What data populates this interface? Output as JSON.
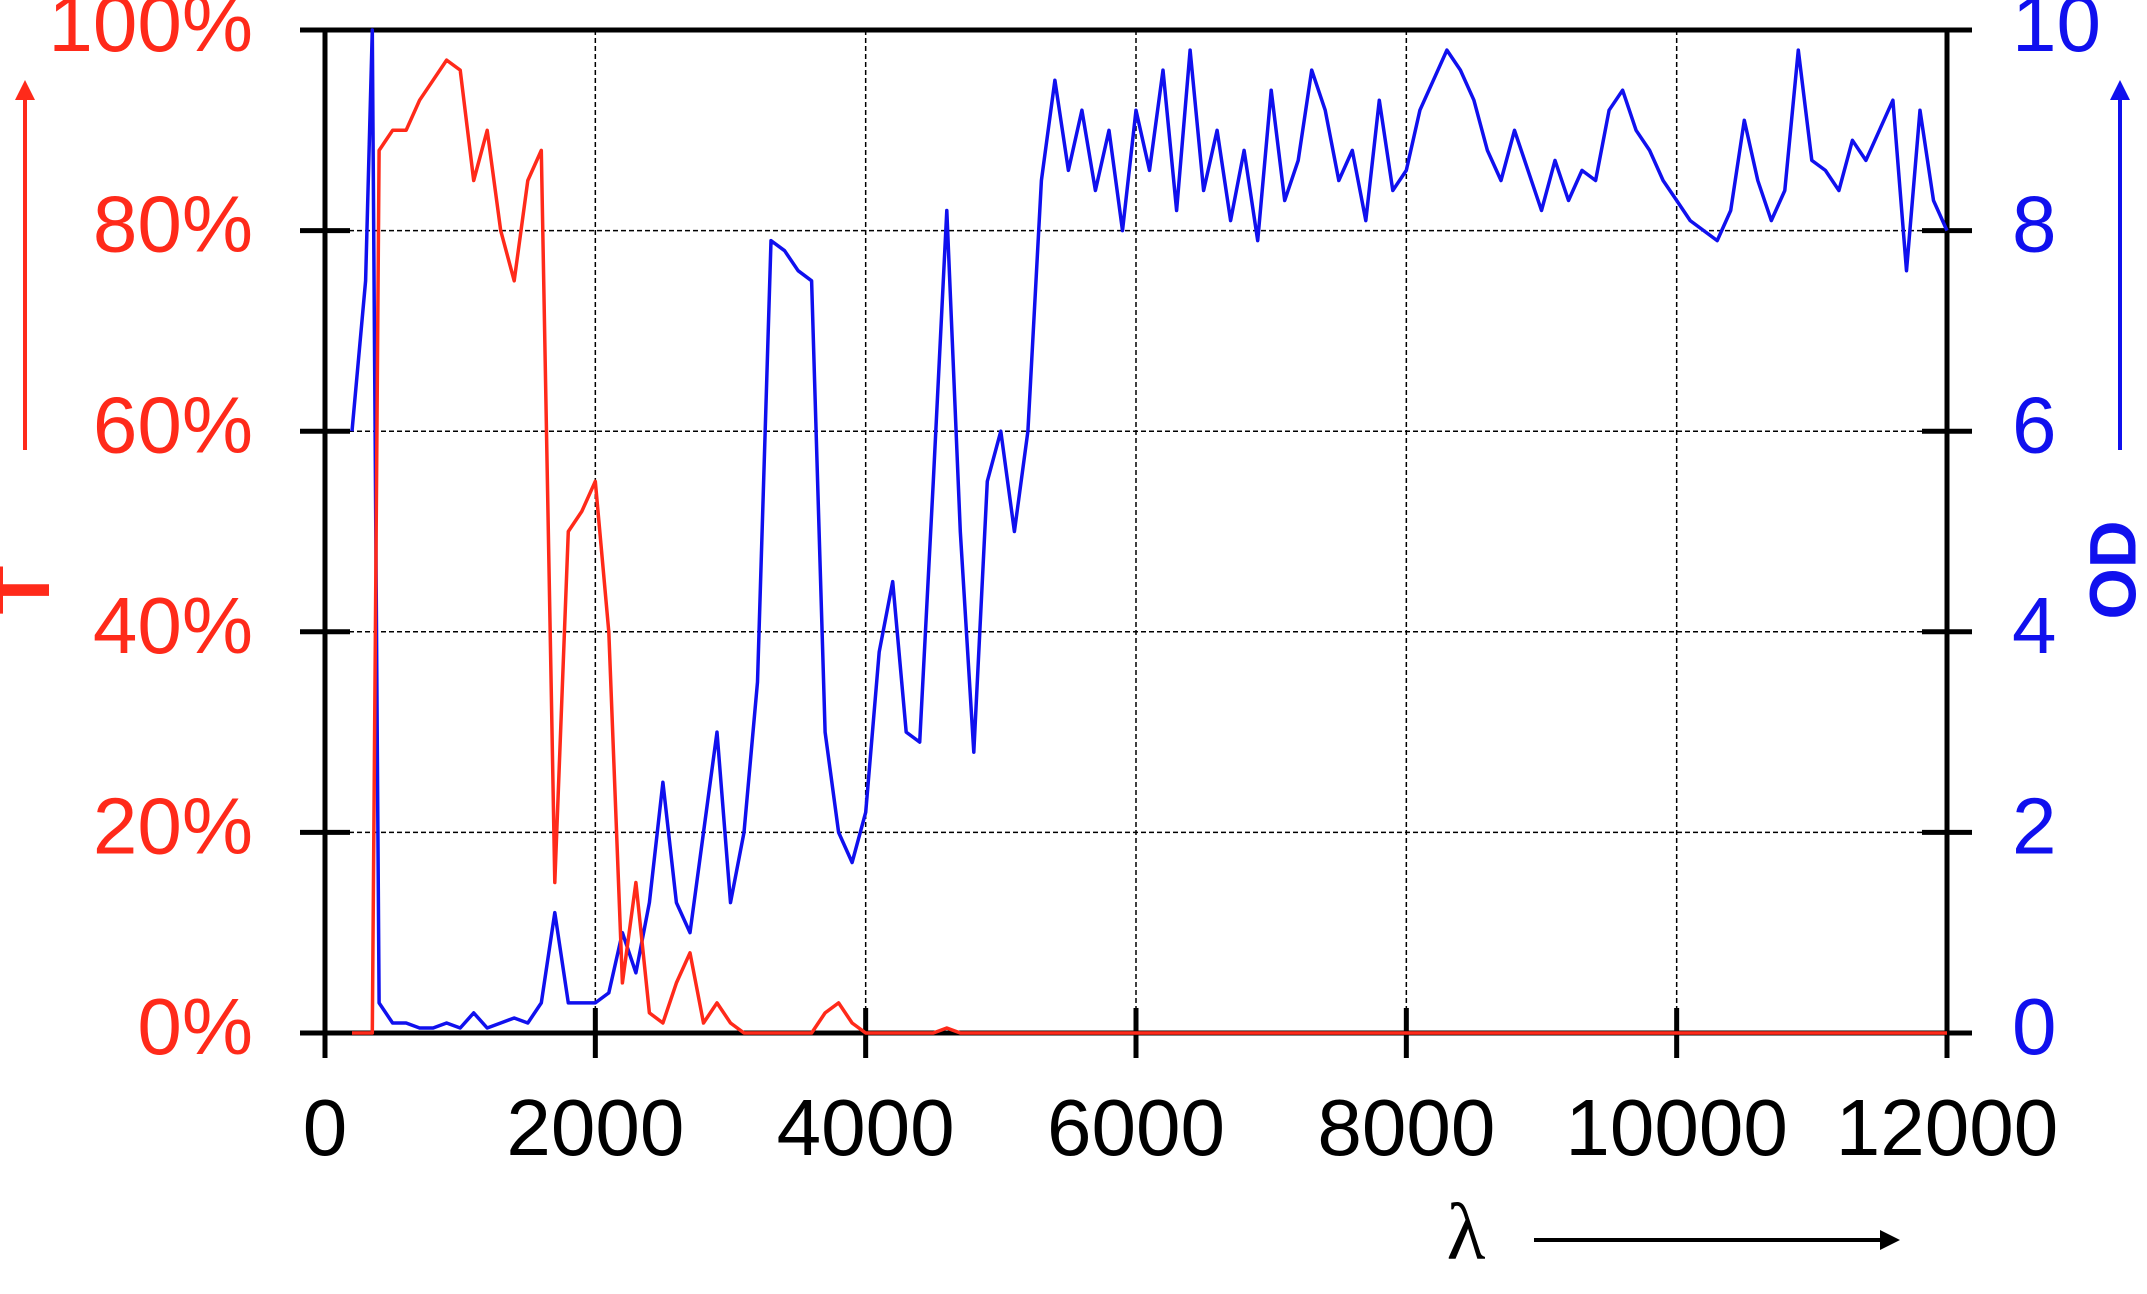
{
  "chart_data": {
    "type": "line",
    "xlabel": "λ",
    "ylabel": "T",
    "y2label": "OD",
    "x": [
      200,
      300,
      350,
      400,
      500,
      600,
      700,
      800,
      900,
      1000,
      1100,
      1200,
      1300,
      1400,
      1500,
      1600,
      1700,
      1800,
      1900,
      2000,
      2100,
      2200,
      2300,
      2400,
      2500,
      2600,
      2700,
      2800,
      2900,
      3000,
      3100,
      3200,
      3300,
      3400,
      3500,
      3600,
      3700,
      3800,
      3900,
      4000,
      4100,
      4200,
      4300,
      4400,
      4500,
      4600,
      4700,
      4800,
      4900,
      5000,
      5100,
      5200,
      5300,
      5400,
      5500,
      5600,
      5700,
      5800,
      5900,
      6000,
      6100,
      6200,
      6300,
      6400,
      6500,
      6600,
      6700,
      6800,
      6900,
      7000,
      7100,
      7200,
      7300,
      7400,
      7500,
      7600,
      7700,
      7800,
      7900,
      8000,
      8100,
      8200,
      8300,
      8400,
      8500,
      8600,
      8700,
      8800,
      8900,
      9000,
      9100,
      9200,
      9300,
      9400,
      9500,
      9600,
      9700,
      9800,
      9900,
      10000,
      10100,
      10200,
      10300,
      10400,
      10500,
      10600,
      10700,
      10800,
      10900,
      11000,
      11100,
      11200,
      11300,
      11400,
      11500,
      11600,
      11700,
      11800,
      11900,
      12000
    ],
    "series": [
      {
        "color": "#ff2a1a",
        "values": [
          0,
          0,
          0,
          88,
          90,
          90,
          93,
          95,
          97,
          96,
          85,
          90,
          80,
          75,
          85,
          88,
          15,
          50,
          52,
          55,
          40,
          5,
          15,
          2,
          1,
          5,
          8,
          1,
          3,
          1,
          0,
          0,
          0,
          0,
          0,
          0,
          2,
          3,
          1,
          0,
          0,
          0,
          0,
          0,
          0,
          0.5,
          0,
          0,
          0,
          0,
          0,
          0,
          0,
          0,
          0,
          0,
          0,
          0,
          0,
          0,
          0,
          0,
          0,
          0,
          0,
          0,
          0,
          0,
          0,
          0,
          0,
          0,
          0,
          0,
          0,
          0,
          0,
          0,
          0,
          0,
          0,
          0,
          0,
          0,
          0,
          0,
          0,
          0,
          0,
          0,
          0,
          0,
          0,
          0,
          0,
          0,
          0,
          0,
          0,
          0,
          0,
          0,
          0,
          0,
          0,
          0,
          0,
          0,
          0,
          0,
          0,
          0,
          0,
          0,
          0,
          0,
          0,
          0,
          0,
          0
        ]
      },
      {
        "color": "#1010ee",
        "axis": "y2",
        "values": [
          6.0,
          7.5,
          10,
          0.3,
          0.1,
          0.1,
          0.05,
          0.05,
          0.1,
          0.05,
          0.2,
          0.05,
          0.1,
          0.15,
          0.1,
          0.3,
          1.2,
          0.3,
          0.3,
          0.3,
          0.4,
          1.0,
          0.6,
          1.3,
          2.5,
          1.3,
          1.0,
          2.0,
          3.0,
          1.3,
          2.0,
          3.5,
          7.9,
          7.8,
          7.6,
          7.5,
          3.0,
          2.0,
          1.7,
          2.2,
          3.8,
          4.5,
          3.0,
          2.9,
          5.5,
          8.2,
          5.0,
          2.8,
          5.5,
          6.0,
          5.0,
          6.0,
          8.5,
          9.5,
          8.6,
          9.2,
          8.4,
          9.0,
          8.0,
          9.2,
          8.6,
          9.6,
          8.2,
          9.8,
          8.4,
          9.0,
          8.1,
          8.8,
          7.9,
          9.4,
          8.3,
          8.7,
          9.6,
          9.2,
          8.5,
          8.8,
          8.1,
          9.3,
          8.4,
          8.6,
          9.2,
          9.5,
          9.8,
          9.6,
          9.3,
          8.8,
          8.5,
          9.0,
          8.6,
          8.2,
          8.7,
          8.3,
          8.6,
          8.5,
          9.2,
          9.4,
          9.0,
          8.8,
          8.5,
          8.3,
          8.1,
          8.0,
          7.9,
          8.2,
          9.1,
          8.5,
          8.1,
          8.4,
          9.8,
          8.7,
          8.6,
          8.4,
          8.9,
          8.7,
          9.0,
          9.3,
          7.6,
          9.2,
          8.3,
          8.0
        ]
      }
    ],
    "xlim": [
      0,
      12000
    ],
    "xticks": [
      0,
      2000,
      4000,
      6000,
      8000,
      10000,
      12000
    ],
    "ylim": [
      0,
      100
    ],
    "yticks": [
      {
        "value": 0,
        "label": "0%"
      },
      {
        "value": 20,
        "label": "20%"
      },
      {
        "value": 40,
        "label": "40%"
      },
      {
        "value": 60,
        "label": "60%"
      },
      {
        "value": 80,
        "label": "80%"
      },
      {
        "value": 100,
        "label": "100%"
      }
    ],
    "y2lim": [
      0,
      10
    ],
    "y2ticks": [
      0,
      2,
      4,
      6,
      8,
      10
    ],
    "grid": true
  }
}
